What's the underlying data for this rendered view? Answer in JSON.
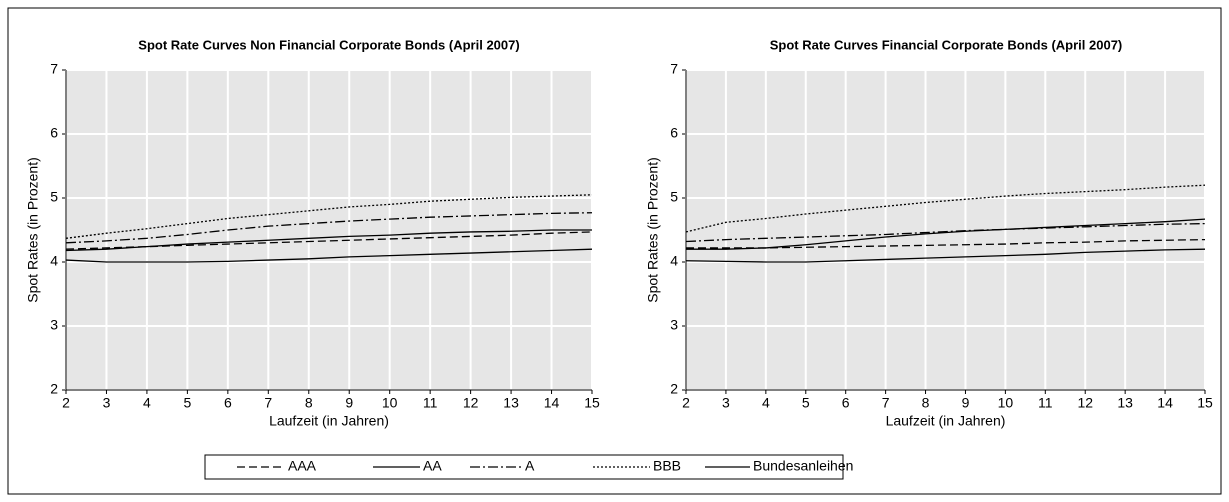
{
  "chart_data": [
    {
      "type": "line",
      "title": "Spot Rate Curves Non Financial Corporate Bonds (April 2007)",
      "xlabel": "Laufzeit (in Jahren)",
      "ylabel": "Spot Rates (in Prozent)",
      "x": [
        2,
        3,
        4,
        5,
        6,
        7,
        8,
        9,
        10,
        11,
        12,
        13,
        14,
        15
      ],
      "xlim": [
        2,
        15
      ],
      "xticks": [
        2,
        3,
        4,
        5,
        6,
        7,
        8,
        9,
        10,
        11,
        12,
        13,
        14,
        15
      ],
      "ylim": [
        2,
        7
      ],
      "yticks": [
        2,
        3,
        4,
        5,
        6,
        7
      ],
      "grid": true,
      "series": [
        {
          "name": "AAA",
          "color": "#000000",
          "style": "dashed",
          "values": [
            4.2,
            4.22,
            4.24,
            4.26,
            4.28,
            4.3,
            4.32,
            4.34,
            4.36,
            4.38,
            4.4,
            4.42,
            4.45,
            4.47
          ]
        },
        {
          "name": "AA",
          "color": "#000000",
          "style": "solid",
          "values": [
            4.18,
            4.2,
            4.24,
            4.28,
            4.31,
            4.34,
            4.37,
            4.4,
            4.42,
            4.45,
            4.47,
            4.48,
            4.5,
            4.5
          ]
        },
        {
          "name": "A",
          "color": "#000000",
          "style": "dashdot",
          "values": [
            4.3,
            4.33,
            4.37,
            4.43,
            4.5,
            4.56,
            4.6,
            4.64,
            4.67,
            4.7,
            4.72,
            4.74,
            4.76,
            4.77
          ]
        },
        {
          "name": "BBB",
          "color": "#000000",
          "style": "dotted",
          "values": [
            4.37,
            4.45,
            4.52,
            4.6,
            4.68,
            4.74,
            4.8,
            4.86,
            4.9,
            4.95,
            4.98,
            5.01,
            5.03,
            5.05
          ]
        },
        {
          "name": "Bundesanleihen",
          "color": "#000000",
          "style": "solid",
          "values": [
            4.03,
            4.0,
            4.0,
            4.0,
            4.01,
            4.03,
            4.05,
            4.08,
            4.1,
            4.12,
            4.14,
            4.16,
            4.18,
            4.2
          ]
        }
      ]
    },
    {
      "type": "line",
      "title": "Spot Rate Curves Financial Corporate Bonds (April 2007)",
      "xlabel": "Laufzeit (in Jahren)",
      "ylabel": "Spot Rates (in Prozent)",
      "x": [
        2,
        3,
        4,
        5,
        6,
        7,
        8,
        9,
        10,
        11,
        12,
        13,
        14,
        15
      ],
      "xlim": [
        2,
        15
      ],
      "xticks": [
        2,
        3,
        4,
        5,
        6,
        7,
        8,
        9,
        10,
        11,
        12,
        13,
        14,
        15
      ],
      "ylim": [
        2,
        7
      ],
      "yticks": [
        2,
        3,
        4,
        5,
        6,
        7
      ],
      "grid": true,
      "series": [
        {
          "name": "AAA",
          "color": "#000000",
          "style": "dashed",
          "values": [
            4.22,
            4.22,
            4.22,
            4.23,
            4.24,
            4.25,
            4.26,
            4.27,
            4.28,
            4.3,
            4.31,
            4.33,
            4.34,
            4.35
          ]
        },
        {
          "name": "AA",
          "color": "#000000",
          "style": "solid",
          "values": [
            4.2,
            4.2,
            4.22,
            4.27,
            4.33,
            4.39,
            4.44,
            4.48,
            4.51,
            4.54,
            4.57,
            4.6,
            4.63,
            4.67
          ]
        },
        {
          "name": "A",
          "color": "#000000",
          "style": "dashdot",
          "values": [
            4.32,
            4.35,
            4.37,
            4.39,
            4.41,
            4.43,
            4.46,
            4.49,
            4.51,
            4.53,
            4.55,
            4.57,
            4.59,
            4.6
          ]
        },
        {
          "name": "BBB",
          "color": "#000000",
          "style": "dotted",
          "values": [
            4.47,
            4.62,
            4.68,
            4.75,
            4.81,
            4.87,
            4.93,
            4.98,
            5.03,
            5.07,
            5.1,
            5.13,
            5.17,
            5.2
          ]
        },
        {
          "name": "Bundesanleihen",
          "color": "#000000",
          "style": "solid",
          "values": [
            4.02,
            4.01,
            4.0,
            4.0,
            4.02,
            4.04,
            4.06,
            4.08,
            4.1,
            4.12,
            4.15,
            4.17,
            4.19,
            4.2
          ]
        }
      ]
    }
  ]
}
